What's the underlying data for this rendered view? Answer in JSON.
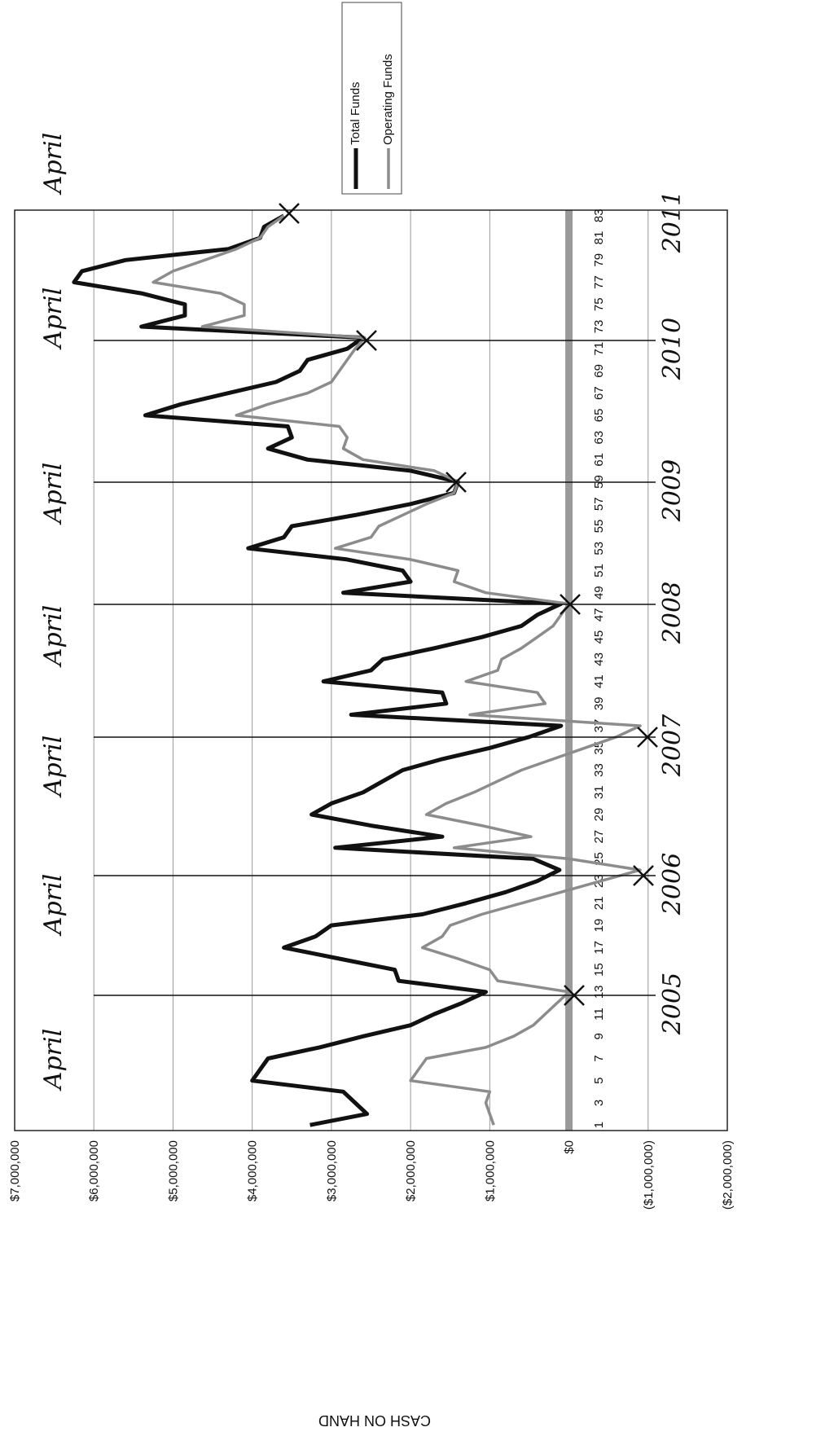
{
  "chart_data": {
    "type": "line",
    "rotated": true,
    "y_label": "CASH ON HAND",
    "categories": [
      1,
      null,
      3,
      null,
      5,
      null,
      7,
      null,
      9,
      null,
      11,
      null,
      13,
      null,
      15,
      null,
      17,
      null,
      19,
      null,
      21,
      null,
      23,
      null,
      25,
      null,
      27,
      null,
      29,
      null,
      31,
      null,
      33,
      null,
      35,
      null,
      37,
      null,
      39,
      null,
      41,
      null,
      43,
      null,
      45,
      null,
      47,
      null,
      49,
      null,
      51,
      null,
      53,
      null,
      55,
      null,
      57,
      null,
      59,
      null,
      61,
      null,
      63,
      null,
      65,
      null,
      67,
      null,
      69,
      null,
      71,
      null,
      73,
      null,
      75,
      null,
      77,
      null,
      79,
      null,
      81,
      null,
      83
    ],
    "series": [
      {
        "name": "Total Funds",
        "color": "#111111",
        "values": [
          3270000,
          2550000,
          2700000,
          2850000,
          4000000,
          3900000,
          3800000,
          3150000,
          2600000,
          2000000,
          1700000,
          1350000,
          1050000,
          2150000,
          2200000,
          2900000,
          3600000,
          3200000,
          3000000,
          1850000,
          1300000,
          800000,
          400000,
          120000,
          450000,
          2950000,
          1600000,
          2500000,
          3250000,
          3000000,
          2600000,
          2350000,
          2100000,
          1600000,
          1000000,
          500000,
          100000,
          2750000,
          1550000,
          1600000,
          3100000,
          2500000,
          2350000,
          1700000,
          1100000,
          600000,
          400000,
          100000,
          2850000,
          2000000,
          2100000,
          2800000,
          4050000,
          3600000,
          3500000,
          2700000,
          2000000,
          1450000,
          1400000,
          2000000,
          3300000,
          3800000,
          3500000,
          3550000,
          5350000,
          4900000,
          4300000,
          3700000,
          3400000,
          3300000,
          2800000,
          2600000,
          5400000,
          4850000,
          4850000,
          5400000,
          6250000,
          6150000,
          5600000,
          4300000,
          3900000,
          3850000,
          3600000
        ]
      },
      {
        "name": "Operating Funds",
        "color": "#8c8c8c",
        "values": [
          950000,
          1000000,
          1050000,
          1000000,
          2000000,
          1900000,
          1800000,
          1050000,
          700000,
          450000,
          300000,
          150000,
          0,
          900000,
          1000000,
          1400000,
          1850000,
          1600000,
          1500000,
          1100000,
          600000,
          100000,
          -400000,
          -900000,
          0,
          1450000,
          480000,
          1100000,
          1800000,
          1550000,
          1200000,
          900000,
          600000,
          200000,
          -200000,
          -600000,
          -900000,
          1250000,
          300000,
          400000,
          1300000,
          900000,
          850000,
          600000,
          400000,
          200000,
          100000,
          0,
          1050000,
          1450000,
          1400000,
          2000000,
          2950000,
          2500000,
          2400000,
          2100000,
          1800000,
          1450000,
          1400000,
          1700000,
          2600000,
          2850000,
          2800000,
          2900000,
          4200000,
          3800000,
          3300000,
          3000000,
          2900000,
          2800000,
          2700000,
          2580000,
          4630000,
          4100000,
          4100000,
          4400000,
          5250000,
          5000000,
          4600000,
          4200000,
          3900000,
          3800000,
          3600000
        ]
      }
    ],
    "ylim": [
      -2000000,
      7000000
    ],
    "yticks": [
      {
        "value": -2000000,
        "label": "($2,000,000)"
      },
      {
        "value": -1000000,
        "label": "($1,000,000)"
      },
      {
        "value": 0,
        "label": "$0"
      },
      {
        "value": 1000000,
        "label": "$1,000,000"
      },
      {
        "value": 2000000,
        "label": "$2,000,000"
      },
      {
        "value": 3000000,
        "label": "$3,000,000"
      },
      {
        "value": 4000000,
        "label": "$4,000,000"
      },
      {
        "value": 5000000,
        "label": "$5,000,000"
      },
      {
        "value": 6000000,
        "label": "$6,000,000"
      },
      {
        "value": 7000000,
        "label": "$7,000,000"
      }
    ],
    "grid": true,
    "legend": "right",
    "handwritten_months": [
      "April",
      "April",
      "April",
      "April",
      "April",
      "April",
      "April"
    ],
    "handwritten_years": [
      "2005",
      "2006",
      "2007",
      "2008",
      "2009",
      "2010",
      "2011"
    ]
  }
}
